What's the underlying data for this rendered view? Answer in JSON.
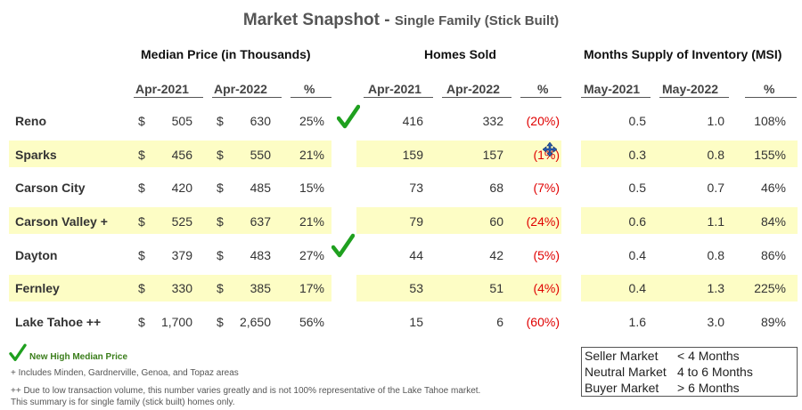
{
  "title": "Market Snapshot - ",
  "subtitle": "Single Family (Stick Built)",
  "sections": {
    "median": "Median Price (in Thousands)",
    "sold": "Homes Sold",
    "msi": "Months Supply of Inventory (MSI)"
  },
  "headers": {
    "median": [
      "Apr-2021",
      "Apr-2022",
      "%"
    ],
    "sold": [
      "Apr-2021",
      "Apr-2022",
      "%"
    ],
    "msi": [
      "May-2021",
      "May-2022",
      "%"
    ]
  },
  "currency": "$",
  "rows": [
    {
      "city": "Reno",
      "m1": "505",
      "m2": "630",
      "mp": "25%",
      "s1": "416",
      "s2": "332",
      "sp": "(20%)",
      "i1": "0.5",
      "i2": "1.0",
      "ip": "108%"
    },
    {
      "city": "Sparks",
      "m1": "456",
      "m2": "550",
      "mp": "21%",
      "s1": "159",
      "s2": "157",
      "sp": "(1%)",
      "i1": "0.3",
      "i2": "0.8",
      "ip": "155%"
    },
    {
      "city": "Carson City",
      "m1": "420",
      "m2": "485",
      "mp": "15%",
      "s1": "73",
      "s2": "68",
      "sp": "(7%)",
      "i1": "0.5",
      "i2": "0.7",
      "ip": "46%"
    },
    {
      "city": "Carson Valley +",
      "m1": "525",
      "m2": "637",
      "mp": "21%",
      "s1": "79",
      "s2": "60",
      "sp": "(24%)",
      "i1": "0.6",
      "i2": "1.1",
      "ip": "84%"
    },
    {
      "city": "Dayton",
      "m1": "379",
      "m2": "483",
      "mp": "27%",
      "s1": "44",
      "s2": "42",
      "sp": "(5%)",
      "i1": "0.4",
      "i2": "0.8",
      "ip": "86%"
    },
    {
      "city": "Fernley",
      "m1": "330",
      "m2": "385",
      "mp": "17%",
      "s1": "53",
      "s2": "51",
      "sp": "(4%)",
      "i1": "0.4",
      "i2": "1.3",
      "ip": "225%"
    },
    {
      "city": "Lake Tahoe ++",
      "m1": "1,700",
      "m2": "2,650",
      "mp": "56%",
      "s1": "15",
      "s2": "6",
      "sp": "(60%)",
      "i1": "1.6",
      "i2": "3.0",
      "ip": "89%"
    }
  ],
  "check_rows": [
    "Reno",
    "Dayton"
  ],
  "legend": {
    "check_label": "New High Median Price",
    "rows": [
      {
        "market": "Seller Market",
        "range": "< 4 Months"
      },
      {
        "market": "Neutral Market",
        "range": "4 to 6 Months"
      },
      {
        "market": "Buyer Market",
        "range": "> 6  Months"
      }
    ]
  },
  "notes": {
    "plus": "+ Includes Minden, Gardnerville, Genoa, and Topaz areas",
    "plusplus": "++ Due to low transaction volume, this number varies greatly and is not 100% representative of the Lake Tahoe market.",
    "summary": "This summary is for single family (stick built) homes only."
  },
  "colors": {
    "band": "#fdfdc5",
    "negative": "#e00000",
    "check": "#1fa01f",
    "check_label": "#3a7d1a"
  }
}
